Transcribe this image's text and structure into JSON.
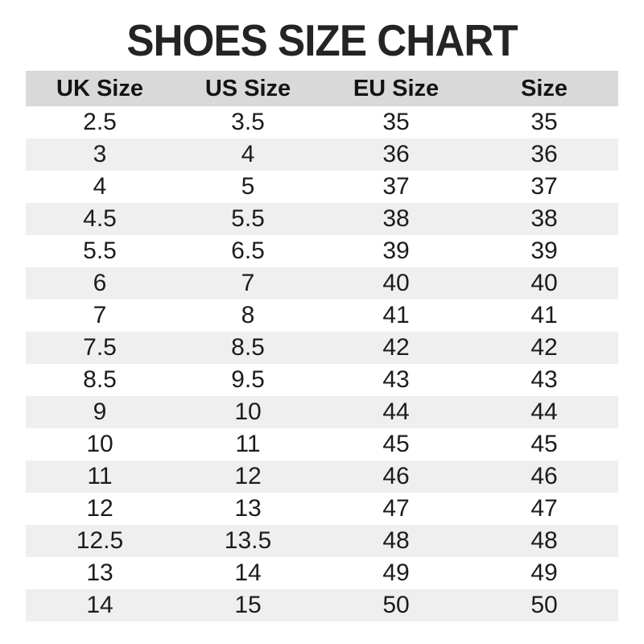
{
  "title": "SHOES SIZE CHART",
  "colors": {
    "background": "#ffffff",
    "title_text": "#242424",
    "header_background": "#d9d9d9",
    "header_text": "#141414",
    "stripe_background": "#efefef",
    "cell_text": "#1c1c1c"
  },
  "chart_data": {
    "type": "table",
    "title": "SHOES SIZE CHART",
    "columns": [
      "UK Size",
      "US Size",
      "EU Size",
      "Size"
    ],
    "rows": [
      [
        "2.5",
        "3.5",
        "35",
        "35"
      ],
      [
        "3",
        "4",
        "36",
        "36"
      ],
      [
        "4",
        "5",
        "37",
        "37"
      ],
      [
        "4.5",
        "5.5",
        "38",
        "38"
      ],
      [
        "5.5",
        "6.5",
        "39",
        "39"
      ],
      [
        "6",
        "7",
        "40",
        "40"
      ],
      [
        "7",
        "8",
        "41",
        "41"
      ],
      [
        "7.5",
        "8.5",
        "42",
        "42"
      ],
      [
        "8.5",
        "9.5",
        "43",
        "43"
      ],
      [
        "9",
        "10",
        "44",
        "44"
      ],
      [
        "10",
        "11",
        "45",
        "45"
      ],
      [
        "11",
        "12",
        "46",
        "46"
      ],
      [
        "12",
        "13",
        "47",
        "47"
      ],
      [
        "12.5",
        "13.5",
        "48",
        "48"
      ],
      [
        "13",
        "14",
        "49",
        "49"
      ],
      [
        "14",
        "15",
        "50",
        "50"
      ]
    ],
    "layout": {
      "striped": true,
      "stripe_pattern": "even rows shaded",
      "header_background": "#d9d9d9",
      "stripe_background": "#efefef",
      "column_alignment": "center"
    }
  }
}
